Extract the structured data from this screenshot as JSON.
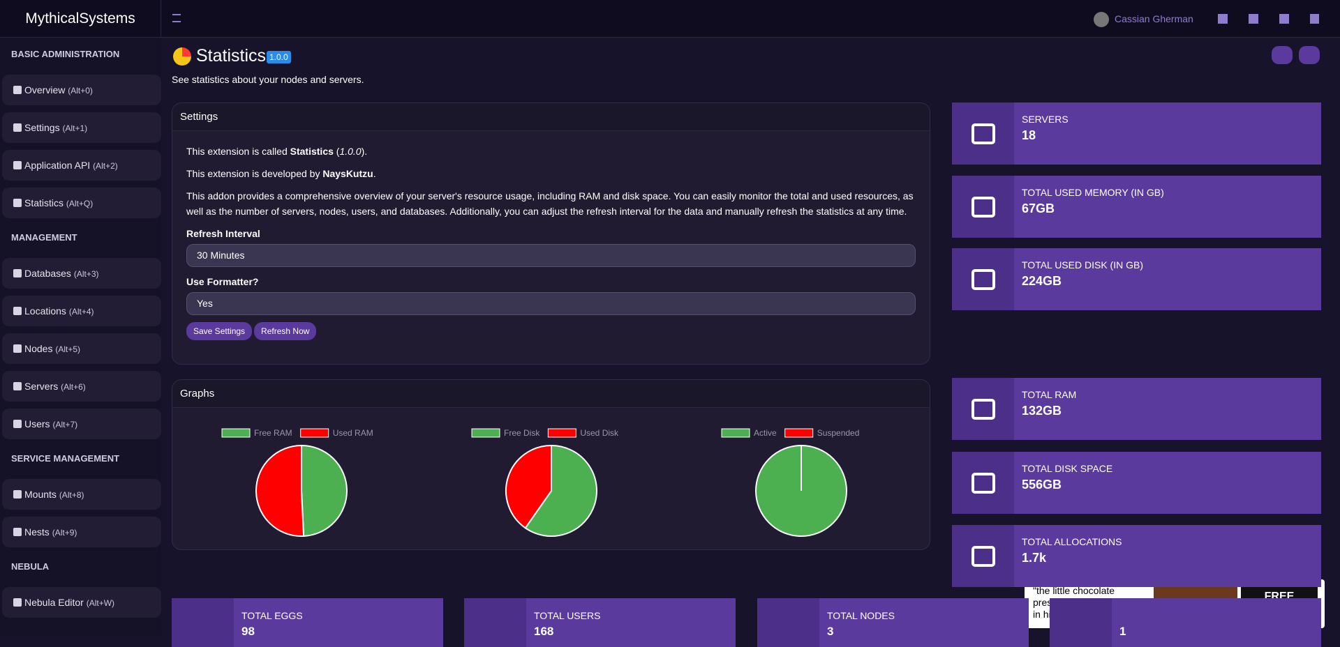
{
  "header": {
    "brand": "MythicalSystems",
    "user": "Cassian Gherman"
  },
  "sidebar": {
    "sections": [
      {
        "title": "BASIC ADMINISTRATION",
        "items": [
          {
            "label": "Overview",
            "shortcut": "(Alt+0)"
          },
          {
            "label": "Settings",
            "shortcut": "(Alt+1)"
          },
          {
            "label": "Application API",
            "shortcut": "(Alt+2)"
          },
          {
            "label": "Statistics",
            "shortcut": "(Alt+Q)"
          }
        ]
      },
      {
        "title": "MANAGEMENT",
        "items": [
          {
            "label": "Databases",
            "shortcut": "(Alt+3)"
          },
          {
            "label": "Locations",
            "shortcut": "(Alt+4)"
          },
          {
            "label": "Nodes",
            "shortcut": "(Alt+5)"
          },
          {
            "label": "Servers",
            "shortcut": "(Alt+6)"
          },
          {
            "label": "Users",
            "shortcut": "(Alt+7)"
          }
        ]
      },
      {
        "title": "SERVICE MANAGEMENT",
        "items": [
          {
            "label": "Mounts",
            "shortcut": "(Alt+8)"
          },
          {
            "label": "Nests",
            "shortcut": "(Alt+9)"
          }
        ]
      },
      {
        "title": "NEBULA",
        "items": [
          {
            "label": "Nebula Editor",
            "shortcut": "(Alt+W)"
          }
        ]
      }
    ]
  },
  "page": {
    "title": "Statistics",
    "version": "1.0.0",
    "subtitle": "See statistics about your nodes and servers."
  },
  "settings": {
    "title": "Settings",
    "line1": [
      "This extension is called ",
      "Statistics",
      " (",
      "1.0.0",
      ")."
    ],
    "line2": [
      "This extension is developed by ",
      "NaysKutzu",
      "."
    ],
    "description": "This addon provides a comprehensive overview of your server's resource usage, including RAM and disk space. You can easily monitor the total and used resources, as well as the number of servers, nodes, users, and databases. Additionally, you can adjust the refresh interval for the data and manually refresh the statistics at any time.",
    "refresh_label": "Refresh Interval",
    "refresh_value": "30 Minutes",
    "formatter_label": "Use Formatter?",
    "formatter_value": "Yes",
    "buttons": [
      "Save Settings",
      "Refresh Now"
    ]
  },
  "graphs": {
    "title": "Graphs",
    "charts": [
      {
        "type": "pie",
        "categories": [
          "Free RAM",
          "Used RAM"
        ],
        "values": [
          65,
          67
        ],
        "colors": [
          "#4caf50",
          "#ff0000"
        ]
      },
      {
        "type": "pie",
        "categories": [
          "Free Disk",
          "Used Disk"
        ],
        "values": [
          332,
          224
        ],
        "colors": [
          "#4caf50",
          "#ff0000"
        ]
      },
      {
        "type": "pie",
        "categories": [
          "Active",
          "Suspended"
        ],
        "values": [
          18,
          0
        ],
        "colors": [
          "#4caf50",
          "#ff0000"
        ]
      }
    ]
  },
  "stats": [
    {
      "label": "SERVERS",
      "value": "18"
    },
    {
      "label": "TOTAL USED MEMORY (IN GB)",
      "value": "67GB"
    },
    {
      "label": "TOTAL USED DISK (IN GB)",
      "value": "224GB"
    },
    {
      "label": "TOTAL RAM",
      "value": "132GB"
    },
    {
      "label": "TOTAL DISK SPACE",
      "value": "556GB"
    },
    {
      "label": "TOTAL ALLOCATIONS",
      "value": "1.7k"
    }
  ],
  "bottom_stats": [
    {
      "label": "TOTAL EGGS",
      "value": "98"
    },
    {
      "label": "TOTAL USERS",
      "value": "168"
    },
    {
      "label": "TOTAL NODES",
      "value": "3"
    },
    {
      "value": "1"
    }
  ],
  "ad": {
    "quote": "\"the little chocolate presents my cat left for me in his litter box\"",
    "cta": "FREE SAMPLES"
  }
}
